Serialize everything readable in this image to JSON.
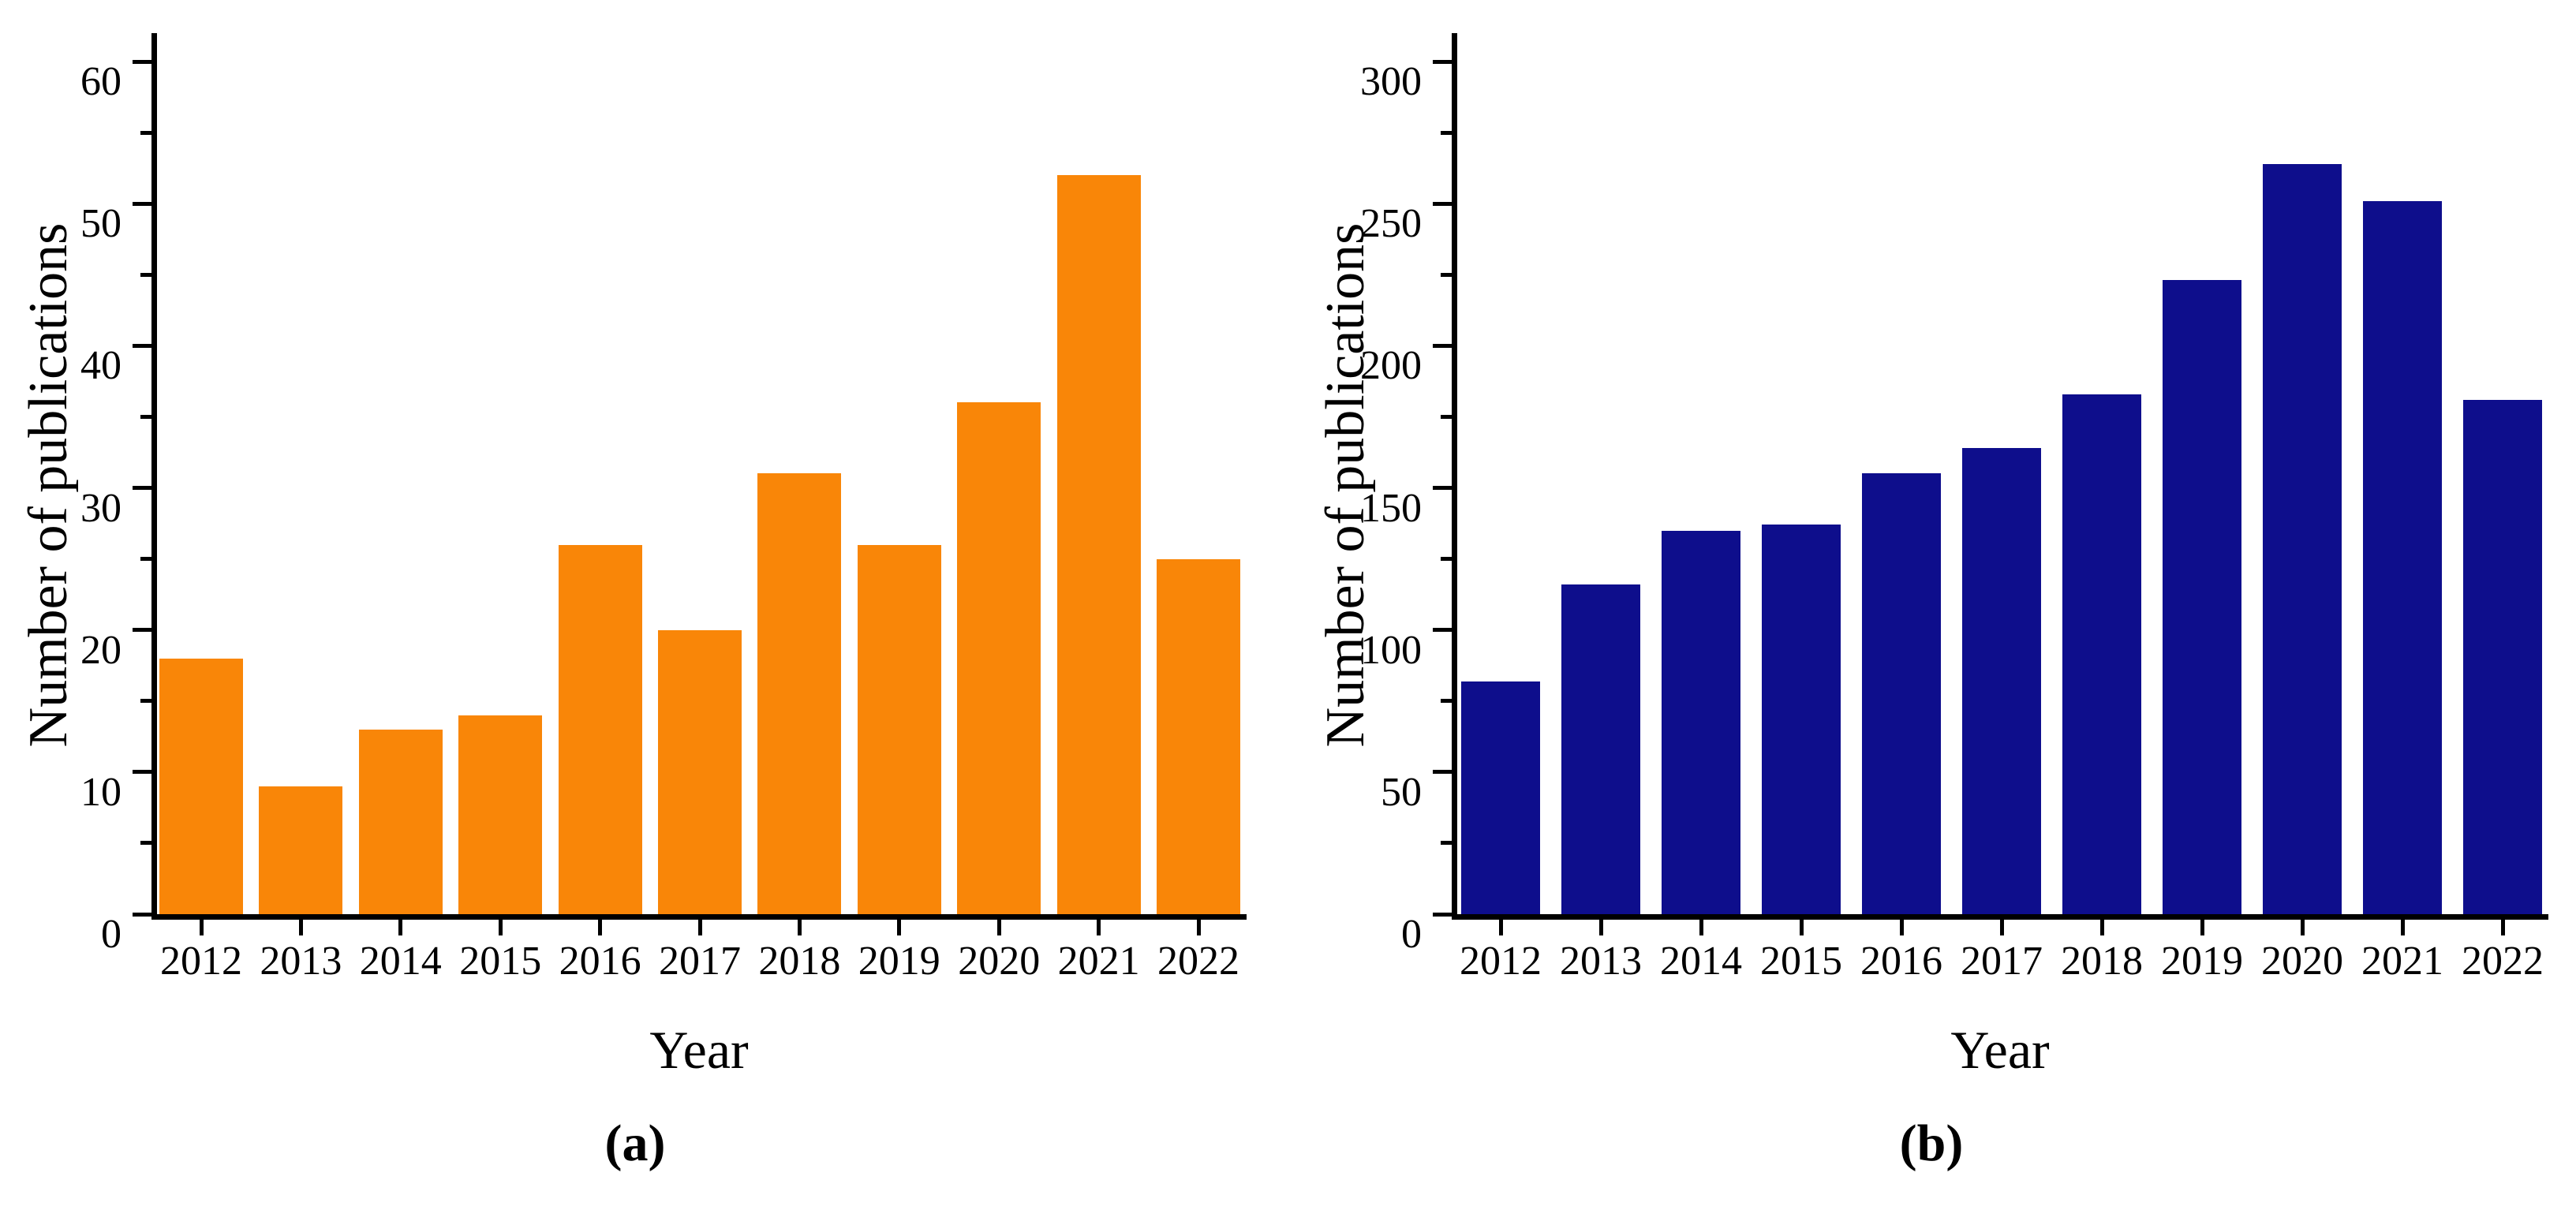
{
  "chart_data": [
    {
      "type": "bar",
      "panel_label": "(a)",
      "title": "",
      "categories": [
        "2012",
        "2013",
        "2014",
        "2015",
        "2016",
        "2017",
        "2018",
        "2019",
        "2020",
        "2021",
        "2022"
      ],
      "values": [
        18,
        9,
        13,
        14,
        26,
        20,
        31,
        26,
        36,
        52,
        25
      ],
      "xlabel": "Year",
      "ylabel": "Number of publications",
      "ylim": [
        0,
        60
      ],
      "yticks": [
        0,
        10,
        20,
        30,
        40,
        50,
        60
      ],
      "minor_ytick_step": 5,
      "bar_color": "#F98608",
      "grid": false,
      "legend": "none"
    },
    {
      "type": "bar",
      "panel_label": "(b)",
      "title": "",
      "categories": [
        "2012",
        "2013",
        "2014",
        "2015",
        "2016",
        "2017",
        "2018",
        "2019",
        "2020",
        "2021",
        "2022"
      ],
      "values": [
        82,
        116,
        135,
        137,
        155,
        164,
        183,
        223,
        264,
        251,
        181
      ],
      "xlabel": "Year",
      "ylabel": "Number of publications",
      "ylim": [
        0,
        300
      ],
      "yticks": [
        0,
        50,
        100,
        150,
        200,
        250,
        300
      ],
      "minor_ytick_step": 25,
      "bar_color": "#0E0E8C",
      "grid": false,
      "legend": "none"
    }
  ]
}
